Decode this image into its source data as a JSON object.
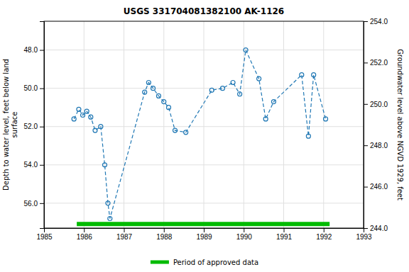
{
  "chart_data": {
    "type": "line",
    "title": "USGS 331704081382100 AK-1126",
    "ylabel": "Depth to water level, feet below land\nsurface",
    "y2label": "Groundwater level above NGVD 1929, feet",
    "x": [
      1985.75,
      1985.87,
      1985.97,
      1986.07,
      1986.17,
      1986.28,
      1986.42,
      1986.52,
      1986.6,
      1986.65,
      1987.52,
      1987.62,
      1987.73,
      1987.87,
      1988.0,
      1988.12,
      1988.28,
      1988.55,
      1989.2,
      1989.47,
      1989.73,
      1989.9,
      1990.05,
      1990.38,
      1990.55,
      1990.75,
      1991.45,
      1991.62,
      1991.75,
      1992.05
    ],
    "values": [
      51.6,
      51.1,
      51.4,
      51.2,
      51.5,
      52.2,
      52.0,
      54.0,
      56.0,
      56.8,
      50.2,
      49.7,
      50.0,
      50.4,
      50.7,
      51.0,
      52.2,
      52.3,
      50.1,
      50.0,
      49.7,
      50.3,
      48.0,
      49.5,
      51.6,
      50.7,
      49.3,
      52.5,
      49.3,
      51.6
    ],
    "line_style": "dashed",
    "marker": "circle",
    "xlim": [
      1985,
      1993
    ],
    "xticks": [
      1985,
      1986,
      1987,
      1988,
      1989,
      1990,
      1991,
      1992,
      1993
    ],
    "ylim": [
      57.3,
      46.5
    ],
    "yticks": [
      {
        "value": 48.0,
        "label": "48.0"
      },
      {
        "value": 50.0,
        "label": "50.0"
      },
      {
        "value": 52.0,
        "label": "52.0"
      },
      {
        "value": 54.0,
        "label": "54.0"
      },
      {
        "value": 56.0,
        "label": "56.0"
      }
    ],
    "y2lim": [
      244.0,
      254.0
    ],
    "y2ticks": [
      {
        "value": 244.0,
        "label": "244.0"
      },
      {
        "value": 246.0,
        "label": "246.0"
      },
      {
        "value": 248.0,
        "label": "248.0"
      },
      {
        "value": 250.0,
        "label": "250.0"
      },
      {
        "value": 252.0,
        "label": "252.0"
      },
      {
        "value": 254.0,
        "label": "254.0"
      }
    ],
    "approved_period": {
      "label": "Period of approved data",
      "xmin": 1985.82,
      "xmax": 1992.15,
      "color": "#00bb00"
    },
    "grid": true,
    "legend": "bottom"
  }
}
